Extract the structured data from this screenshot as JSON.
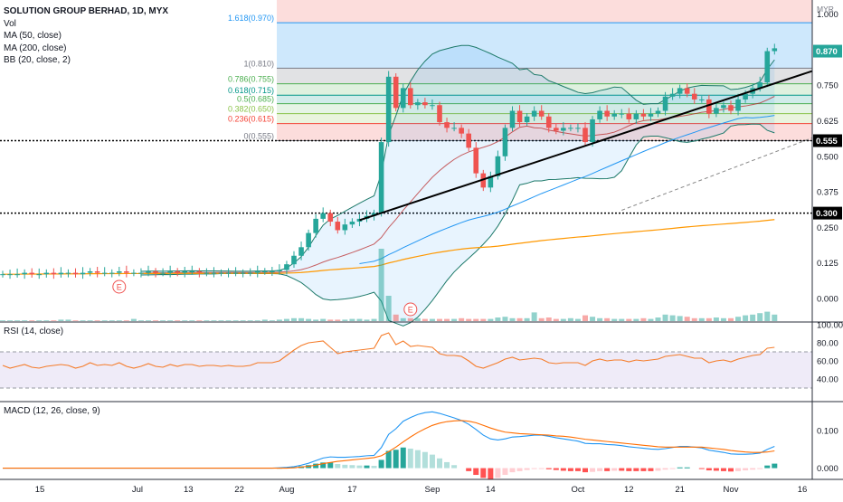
{
  "header": {
    "title": "SOLUTION GROUP BERHAD, 1D, MYX",
    "currency": "MYR",
    "indicators": [
      "Vol",
      "MA (50, close)",
      "MA (200, close)",
      "BB (20, close, 2)"
    ]
  },
  "rsi_label": "RSI (14, close)",
  "macd_label": "MACD (12, 26, close, 9)",
  "colors": {
    "up": "#26a69a",
    "down": "#ef5350",
    "ma50": "#2196f3",
    "ma200": "#ff9800",
    "bb": "#1e7a6a",
    "rsi": "#f57c2a",
    "macd": "#2196f3",
    "signal": "#ff6d00",
    "trend": "#000000"
  },
  "chart_data": [
    {
      "type": "candlestick",
      "title": "SOLUTION GROUP BERHAD, 1D, MYX",
      "x_ticks": [
        "15",
        "Jul",
        "13",
        "22",
        "Aug",
        "17",
        "Sep",
        "14",
        "Oct",
        "12",
        "21",
        "Nov",
        "16"
      ],
      "y_ticks": [
        "1.000",
        "0.875",
        "0.750",
        "0.625",
        "0.500",
        "0.375",
        "0.250",
        "0.125",
        "0.000"
      ],
      "ylim": [
        -0.08,
        1.05
      ],
      "price_labels": [
        "0.870",
        "0.555",
        "0.300"
      ],
      "fib_levels": [
        {
          "label": "1.618(0.970)",
          "value": 0.97
        },
        {
          "label": "1(0.810)",
          "value": 0.81
        },
        {
          "label": "0.786(0.755)",
          "value": 0.755
        },
        {
          "label": "0.618(0.715)",
          "value": 0.715
        },
        {
          "label": "0.5(0.685)",
          "value": 0.685
        },
        {
          "label": "0.382(0.650)",
          "value": 0.65
        },
        {
          "label": "0.236(0.615)",
          "value": 0.615
        },
        {
          "label": "0(0.555)",
          "value": 0.555
        }
      ],
      "close": [
        0.085,
        0.085,
        0.085,
        0.09,
        0.085,
        0.085,
        0.09,
        0.085,
        0.09,
        0.09,
        0.085,
        0.09,
        0.095,
        0.09,
        0.09,
        0.09,
        0.095,
        0.09,
        0.09,
        0.09,
        0.095,
        0.09,
        0.09,
        0.095,
        0.09,
        0.095,
        0.095,
        0.09,
        0.09,
        0.09,
        0.09,
        0.09,
        0.09,
        0.09,
        0.09,
        0.095,
        0.095,
        0.095,
        0.1,
        0.12,
        0.15,
        0.18,
        0.23,
        0.28,
        0.3,
        0.27,
        0.24,
        0.26,
        0.27,
        0.28,
        0.29,
        0.3,
        0.55,
        0.78,
        0.67,
        0.74,
        0.68,
        0.69,
        0.68,
        0.68,
        0.62,
        0.6,
        0.6,
        0.58,
        0.53,
        0.44,
        0.39,
        0.43,
        0.5,
        0.6,
        0.66,
        0.62,
        0.64,
        0.66,
        0.64,
        0.6,
        0.59,
        0.6,
        0.6,
        0.6,
        0.55,
        0.63,
        0.66,
        0.64,
        0.65,
        0.65,
        0.63,
        0.65,
        0.64,
        0.65,
        0.66,
        0.71,
        0.72,
        0.74,
        0.72,
        0.7,
        0.7,
        0.65,
        0.67,
        0.68,
        0.66,
        0.7,
        0.72,
        0.74,
        0.76,
        0.87,
        0.88
      ],
      "volume_scale": "relative",
      "volume": [
        1,
        1,
        1,
        1,
        1,
        1,
        1,
        1,
        2,
        2,
        1,
        1,
        1,
        1,
        1,
        1,
        1,
        1,
        3,
        1,
        1,
        1,
        1,
        1,
        1,
        1,
        1,
        1,
        1,
        1,
        1,
        1,
        1,
        1,
        1,
        1,
        2,
        1,
        2,
        3,
        4,
        4,
        3,
        2,
        3,
        2,
        2,
        2,
        3,
        3,
        2,
        3,
        100,
        35,
        9,
        4,
        4,
        4,
        3,
        3,
        3,
        3,
        3,
        4,
        3,
        3,
        3,
        3,
        5,
        6,
        4,
        4,
        4,
        12,
        4,
        5,
        3,
        3,
        4,
        3,
        8,
        6,
        4,
        4,
        3,
        3,
        3,
        3,
        4,
        3,
        5,
        9,
        8,
        7,
        6,
        4,
        4,
        4,
        5,
        4,
        4,
        6,
        8,
        9,
        11,
        13,
        9
      ]
    },
    {
      "type": "line",
      "title": "RSI (14, close)",
      "y_ticks": [
        "100.00",
        "80.00",
        "60.00",
        "40.00"
      ],
      "ylim": [
        16,
        102
      ],
      "band": [
        30,
        70
      ],
      "values": [
        55,
        52,
        54,
        56,
        53,
        52,
        54,
        55,
        56,
        55,
        52,
        54,
        58,
        55,
        56,
        55,
        58,
        54,
        52,
        54,
        57,
        54,
        53,
        56,
        54,
        56,
        56,
        54,
        55,
        55,
        54,
        55,
        54,
        54,
        55,
        58,
        58,
        58,
        60,
        66,
        72,
        77,
        80,
        81,
        82,
        75,
        68,
        70,
        71,
        72,
        73,
        74,
        88,
        91,
        78,
        82,
        76,
        77,
        76,
        75,
        68,
        66,
        66,
        65,
        60,
        54,
        52,
        55,
        58,
        62,
        64,
        61,
        62,
        63,
        62,
        58,
        57,
        58,
        58,
        58,
        55,
        60,
        62,
        60,
        61,
        61,
        59,
        61,
        60,
        61,
        62,
        65,
        66,
        67,
        65,
        63,
        63,
        58,
        60,
        61,
        59,
        62,
        64,
        66,
        67,
        74,
        75
      ]
    },
    {
      "type": "bar+line",
      "title": "MACD (12, 26, close, 9)",
      "y_ticks": [
        "0.100",
        "0.000"
      ],
      "ylim": [
        -0.03,
        0.175
      ],
      "macd": [
        0.0,
        0.0,
        0.0,
        0.0,
        0.0,
        0.0,
        0.0,
        0.0,
        0.0,
        0.0,
        0.0,
        0.0,
        0.0,
        0.0,
        0.0,
        0.0,
        0.0,
        0.0,
        0.0,
        0.0,
        0.0,
        0.0,
        0.0,
        0.0,
        0.0,
        0.0,
        0.0,
        0.0,
        0.0,
        0.0,
        0.0,
        0.0,
        0.0,
        0.0,
        0.0,
        0.0,
        0.0,
        0.0,
        0.001,
        0.002,
        0.004,
        0.008,
        0.013,
        0.02,
        0.027,
        0.03,
        0.029,
        0.029,
        0.03,
        0.031,
        0.033,
        0.034,
        0.055,
        0.09,
        0.105,
        0.125,
        0.135,
        0.143,
        0.148,
        0.15,
        0.146,
        0.14,
        0.134,
        0.127,
        0.117,
        0.103,
        0.088,
        0.078,
        0.075,
        0.078,
        0.083,
        0.084,
        0.086,
        0.088,
        0.088,
        0.085,
        0.081,
        0.078,
        0.075,
        0.072,
        0.066,
        0.065,
        0.065,
        0.063,
        0.062,
        0.06,
        0.057,
        0.055,
        0.053,
        0.051,
        0.05,
        0.052,
        0.055,
        0.058,
        0.058,
        0.056,
        0.054,
        0.048,
        0.045,
        0.042,
        0.038,
        0.037,
        0.037,
        0.038,
        0.04,
        0.05,
        0.058
      ],
      "signal": [
        0.0,
        0.0,
        0.0,
        0.0,
        0.0,
        0.0,
        0.0,
        0.0,
        0.0,
        0.0,
        0.0,
        0.0,
        0.0,
        0.0,
        0.0,
        0.0,
        0.0,
        0.0,
        0.0,
        0.0,
        0.0,
        0.0,
        0.0,
        0.0,
        0.0,
        0.0,
        0.0,
        0.0,
        0.0,
        0.0,
        0.0,
        0.0,
        0.0,
        0.0,
        0.0,
        0.0,
        0.0,
        0.0,
        0.0,
        0.0,
        0.001,
        0.003,
        0.005,
        0.008,
        0.012,
        0.015,
        0.018,
        0.02,
        0.022,
        0.024,
        0.026,
        0.028,
        0.033,
        0.044,
        0.056,
        0.07,
        0.083,
        0.095,
        0.105,
        0.114,
        0.12,
        0.124,
        0.126,
        0.127,
        0.125,
        0.121,
        0.114,
        0.107,
        0.101,
        0.096,
        0.094,
        0.092,
        0.091,
        0.09,
        0.089,
        0.088,
        0.086,
        0.085,
        0.083,
        0.08,
        0.077,
        0.075,
        0.073,
        0.071,
        0.069,
        0.067,
        0.065,
        0.063,
        0.061,
        0.059,
        0.057,
        0.056,
        0.056,
        0.056,
        0.056,
        0.056,
        0.056,
        0.054,
        0.052,
        0.05,
        0.047,
        0.045,
        0.043,
        0.042,
        0.042,
        0.043,
        0.046
      ],
      "histogram": [
        0.0,
        0.0,
        0.0,
        0.0,
        0.0,
        0.0,
        0.0,
        0.0,
        0.0,
        0.0,
        0.0,
        0.0,
        0.0,
        0.0,
        0.0,
        0.0,
        0.0,
        0.0,
        0.0,
        0.0,
        0.0,
        0.0,
        0.0,
        0.0,
        0.0,
        0.0,
        0.0,
        0.0,
        0.0,
        0.0,
        0.0,
        0.0,
        0.0,
        0.0,
        0.0,
        0.0,
        0.0,
        0.0,
        0.001,
        0.002,
        0.003,
        0.005,
        0.008,
        0.012,
        0.015,
        0.015,
        0.011,
        0.009,
        0.008,
        0.007,
        0.007,
        0.006,
        0.022,
        0.046,
        0.049,
        0.055,
        0.052,
        0.048,
        0.043,
        0.036,
        0.026,
        0.016,
        0.008,
        0.0,
        -0.008,
        -0.018,
        -0.026,
        -0.029,
        -0.026,
        -0.018,
        -0.011,
        -0.008,
        -0.005,
        -0.002,
        -0.001,
        -0.003,
        -0.005,
        -0.007,
        -0.008,
        -0.008,
        -0.011,
        -0.01,
        -0.008,
        -0.008,
        -0.007,
        -0.007,
        -0.008,
        -0.008,
        -0.008,
        -0.008,
        -0.007,
        -0.004,
        -0.001,
        0.002,
        0.002,
        0.0,
        -0.002,
        -0.006,
        -0.007,
        -0.008,
        -0.009,
        -0.008,
        -0.006,
        -0.004,
        -0.002,
        0.007,
        0.012
      ]
    }
  ]
}
